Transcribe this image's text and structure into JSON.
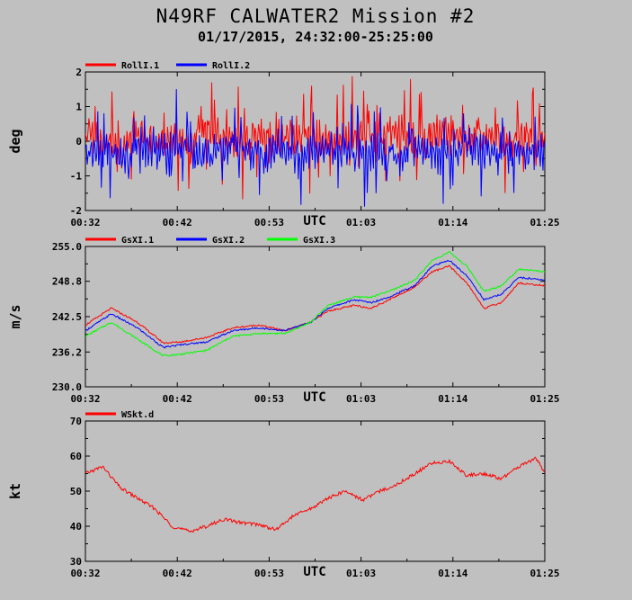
{
  "title": "N49RF CALWATER2 Mission #2",
  "subtitle": "01/17/2015, 24:32:00-25:25:00",
  "x_tick_labels": [
    "00:32",
    "00:42",
    "00:53",
    "01:03",
    "01:14",
    "01:25"
  ],
  "x_axis_label": "UTC",
  "chart_data": [
    {
      "type": "line",
      "ylabel": "deg",
      "ylim": [
        -2,
        2
      ],
      "yticks": [
        -2,
        -1,
        0,
        1,
        2
      ],
      "ytick_labels": [
        "-2",
        "-1",
        "0",
        "1",
        "2"
      ],
      "xlabel": "UTC",
      "x_range": [
        "00:32",
        "01:25"
      ],
      "legend_position": "top-left",
      "series": [
        {
          "name": "RollI.1",
          "color": "#ff0000",
          "x": [
            "00:32",
            "00:34",
            "00:36",
            "00:38",
            "00:40",
            "00:42",
            "00:44",
            "00:46",
            "00:48",
            "00:50",
            "00:52",
            "00:54",
            "00:56",
            "00:58",
            "01:00",
            "01:02",
            "01:04",
            "01:06",
            "01:08",
            "01:10",
            "01:12",
            "01:14",
            "01:16",
            "01:18",
            "01:20",
            "01:22",
            "01:24",
            "01:25"
          ],
          "values": [
            0.9,
            0.2,
            -0.3,
            0.6,
            -0.2,
            0.3,
            -0.1,
            0.5,
            0.2,
            0.0,
            0.7,
            0.1,
            0.4,
            0.8,
            -0.1,
            0.3,
            0.5,
            0.2,
            0.9,
            0.1,
            0.4,
            0.6,
            0.0,
            0.3,
            0.1,
            0.4,
            0.2,
            0.1
          ]
        },
        {
          "name": "RollI.2",
          "color": "#0000ff",
          "x": [
            "00:32",
            "00:34",
            "00:36",
            "00:38",
            "00:40",
            "00:42",
            "00:44",
            "00:46",
            "00:48",
            "00:50",
            "00:52",
            "00:54",
            "00:56",
            "00:58",
            "01:00",
            "01:02",
            "01:04",
            "01:06",
            "01:08",
            "01:10",
            "01:12",
            "01:14",
            "01:16",
            "01:18",
            "01:20",
            "01:22",
            "01:24",
            "01:25"
          ],
          "values": [
            -1.0,
            -0.8,
            -1.2,
            -0.6,
            -0.9,
            -0.4,
            -0.7,
            -1.1,
            -0.5,
            -0.8,
            -1.0,
            -0.6,
            -1.3,
            -0.9,
            -0.5,
            -0.8,
            -1.2,
            -0.7,
            -1.4,
            -0.6,
            -1.0,
            -1.3,
            -0.7,
            -0.9,
            -0.6,
            -0.8,
            -1.0,
            -0.9
          ]
        }
      ]
    },
    {
      "type": "line",
      "ylabel": "m/s",
      "ylim": [
        230.0,
        255.0
      ],
      "yticks": [
        230.0,
        236.2,
        242.5,
        248.8,
        255.0
      ],
      "ytick_labels": [
        "230.0",
        "236.2",
        "242.5",
        "248.8",
        "255.0"
      ],
      "xlabel": "UTC",
      "x_range": [
        "00:32",
        "01:25"
      ],
      "legend_position": "top-left",
      "series": [
        {
          "name": "GsXI.1",
          "color": "#ff0000",
          "x": [
            "00:32",
            "00:35",
            "00:38",
            "00:41",
            "00:43",
            "00:46",
            "00:49",
            "00:52",
            "00:55",
            "00:58",
            "01:00",
            "01:03",
            "01:05",
            "01:07",
            "01:10",
            "01:12",
            "01:14",
            "01:16",
            "01:18",
            "01:20",
            "01:22",
            "01:25"
          ],
          "values": [
            241.0,
            244.0,
            241.5,
            237.8,
            238.0,
            238.8,
            240.5,
            241.0,
            240.0,
            241.5,
            243.5,
            244.5,
            244.0,
            245.5,
            247.8,
            250.5,
            251.5,
            248.5,
            244.0,
            245.0,
            248.5,
            248.0
          ]
        },
        {
          "name": "GsXI.2",
          "color": "#0000ff",
          "x": [
            "00:32",
            "00:35",
            "00:38",
            "00:41",
            "00:43",
            "00:46",
            "00:49",
            "00:52",
            "00:55",
            "00:58",
            "01:00",
            "01:03",
            "01:05",
            "01:07",
            "01:10",
            "01:12",
            "01:14",
            "01:16",
            "01:18",
            "01:20",
            "01:22",
            "01:25"
          ],
          "values": [
            240.0,
            243.0,
            240.5,
            237.0,
            237.5,
            238.0,
            240.0,
            240.5,
            240.0,
            241.5,
            244.0,
            245.5,
            245.0,
            246.0,
            248.0,
            251.5,
            252.5,
            249.8,
            245.5,
            246.5,
            249.5,
            249.0
          ]
        },
        {
          "name": "GsXI.3",
          "color": "#00ff00",
          "x": [
            "00:32",
            "00:35",
            "00:38",
            "00:41",
            "00:43",
            "00:46",
            "00:49",
            "00:52",
            "00:55",
            "00:58",
            "01:00",
            "01:03",
            "01:05",
            "01:07",
            "01:10",
            "01:12",
            "01:14",
            "01:16",
            "01:18",
            "01:20",
            "01:22",
            "01:25"
          ],
          "values": [
            239.0,
            241.5,
            238.5,
            235.5,
            235.8,
            236.5,
            239.0,
            239.5,
            239.5,
            241.5,
            244.5,
            246.0,
            246.0,
            247.0,
            249.0,
            252.5,
            254.0,
            251.5,
            247.0,
            248.0,
            251.0,
            250.5
          ]
        }
      ]
    },
    {
      "type": "line",
      "ylabel": "kt",
      "ylim": [
        30,
        70
      ],
      "yticks": [
        30,
        40,
        50,
        60,
        70
      ],
      "ytick_labels": [
        "30",
        "40",
        "50",
        "60",
        "70"
      ],
      "xlabel": "UTC",
      "x_range": [
        "00:32",
        "01:25"
      ],
      "legend_position": "top-left",
      "series": [
        {
          "name": "WSkt.d",
          "color": "#ff0000",
          "x": [
            "00:32",
            "00:34",
            "00:36",
            "00:38",
            "00:40",
            "00:42",
            "00:44",
            "00:46",
            "00:48",
            "00:50",
            "00:52",
            "00:54",
            "00:56",
            "00:58",
            "01:00",
            "01:02",
            "01:04",
            "01:06",
            "01:08",
            "01:10",
            "01:12",
            "01:14",
            "01:16",
            "01:18",
            "01:20",
            "01:22",
            "01:24",
            "01:25"
          ],
          "values": [
            55.0,
            57.0,
            51.0,
            48.0,
            45.0,
            40.0,
            38.5,
            40.0,
            42.0,
            41.0,
            40.5,
            39.0,
            43.0,
            45.0,
            48.0,
            50.0,
            47.5,
            50.0,
            52.0,
            55.0,
            58.0,
            58.5,
            54.5,
            55.0,
            53.5,
            57.0,
            59.5,
            55.0
          ]
        }
      ]
    }
  ]
}
